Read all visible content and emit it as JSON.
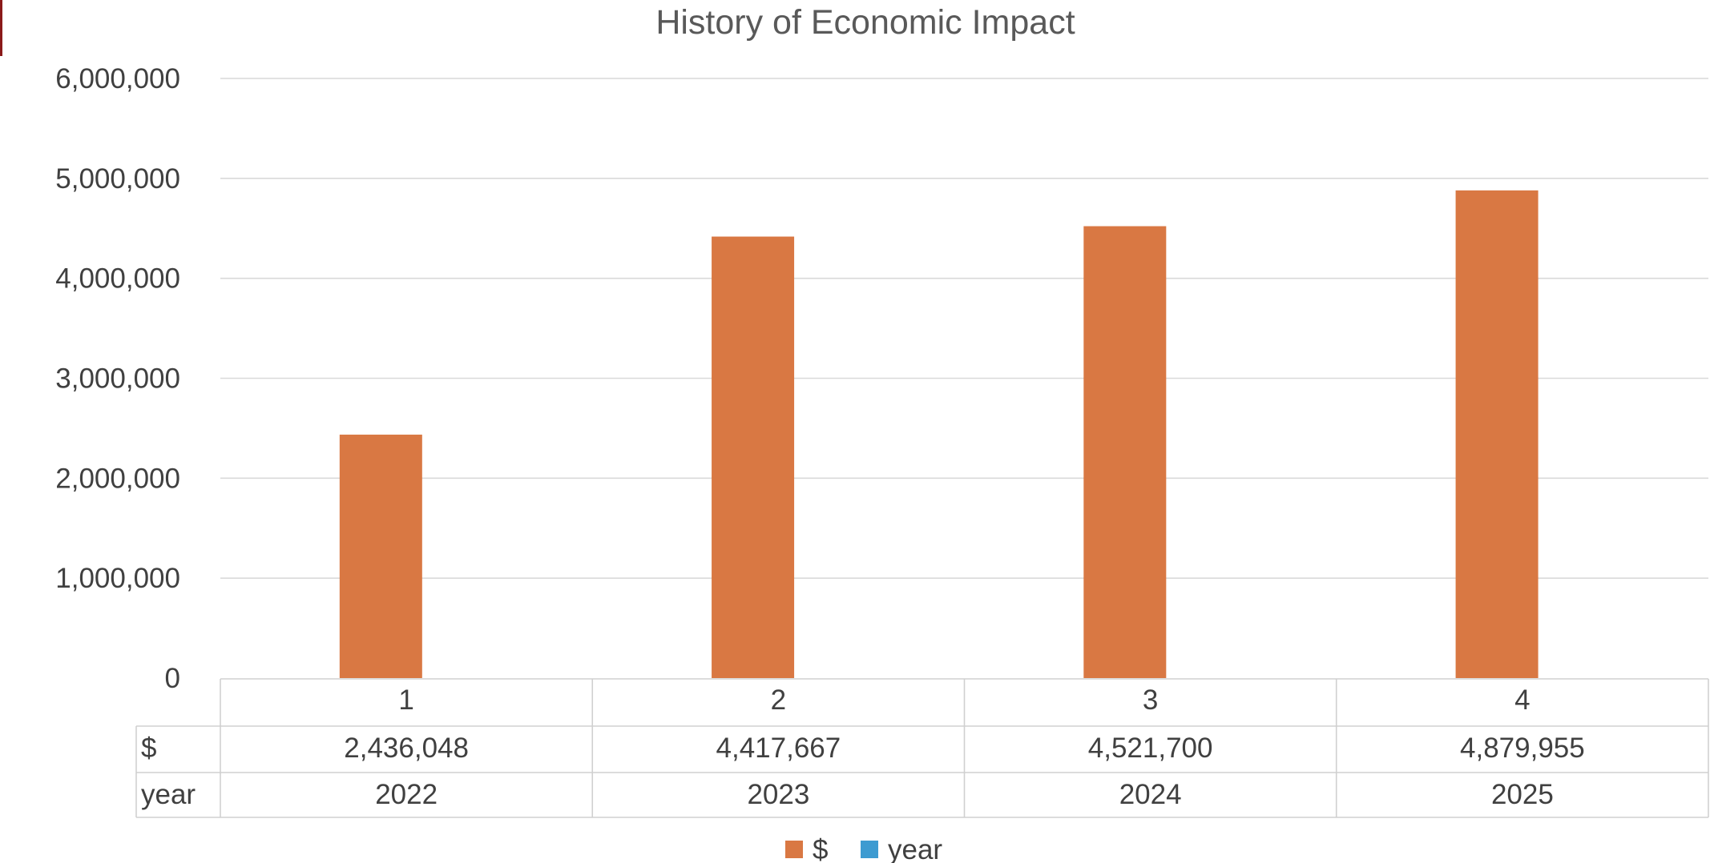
{
  "chart_data": {
    "type": "bar",
    "title": "History of Economic Impact",
    "categories": [
      "1",
      "2",
      "3",
      "4"
    ],
    "series": [
      {
        "name": "$",
        "color": "#d97843",
        "values": [
          2436048,
          4417667,
          4521700,
          4879955
        ],
        "labels": [
          "2,436,048",
          "4,417,667",
          "4,521,700",
          "4,879,955"
        ]
      },
      {
        "name": "year",
        "color": "#3d9bd1",
        "values": [
          2022,
          2023,
          2024,
          2025
        ],
        "labels": [
          "2022",
          "2023",
          "2024",
          "2025"
        ]
      }
    ],
    "ylim": [
      0,
      6000000
    ],
    "yticks": [
      0,
      1000000,
      2000000,
      3000000,
      4000000,
      5000000,
      6000000
    ],
    "ytick_labels": [
      "0",
      "1,000,000",
      "2,000,000",
      "3,000,000",
      "4,000,000",
      "5,000,000",
      "6,000,000"
    ],
    "grid": true,
    "data_table": true,
    "legend": "bottom"
  }
}
